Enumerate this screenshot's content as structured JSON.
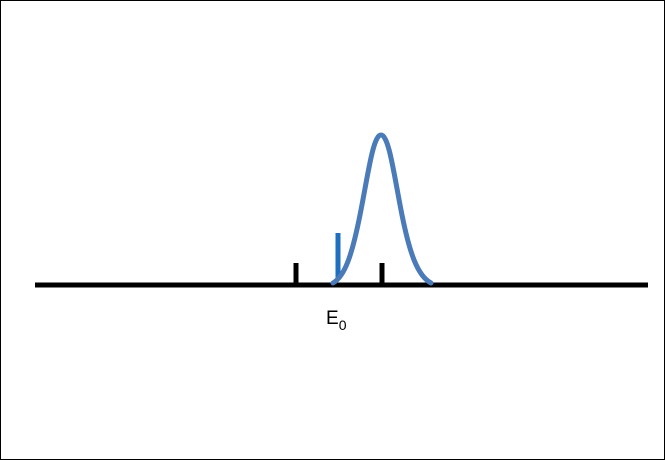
{
  "diagram": {
    "label_base": "E",
    "label_subscript": "0",
    "colors": {
      "axis": "#000000",
      "ticks": "#000000",
      "marker": "#1f6fbf",
      "peak_curve": "#4a7ab8"
    }
  }
}
